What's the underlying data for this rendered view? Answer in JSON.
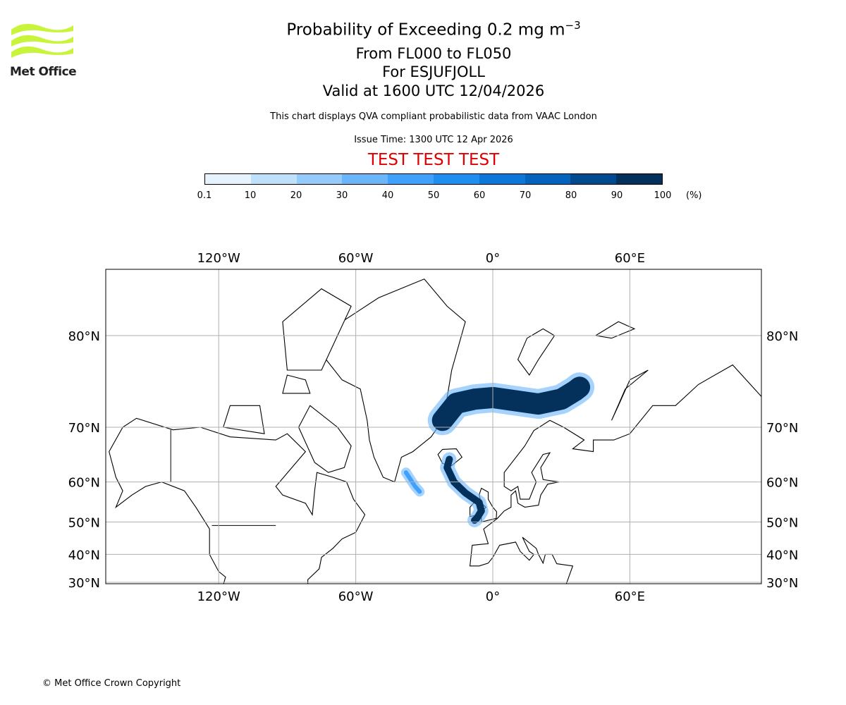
{
  "logo": {
    "text": "Met Office",
    "color": "#c8f53c"
  },
  "header": {
    "title": "Probability of Exceeding 0.2 mg m",
    "title_superscript": "−3",
    "levels": "From FL000 to FL050",
    "volcano": "For ESJUFJOLL",
    "valid": "Valid at 1600 UTC 12/04/2026",
    "description": "This chart displays QVA compliant probabilistic data from VAAC London",
    "issue_time": "Issue Time: 1300 UTC 12 Apr 2026",
    "test_banner": "TEST TEST TEST"
  },
  "chart_data": {
    "type": "heatmap",
    "title": "Probability of Exceeding 0.2 mg m-3",
    "colorbar": {
      "ticks": [
        "0.1",
        "10",
        "20",
        "30",
        "40",
        "50",
        "60",
        "70",
        "80",
        "90",
        "100"
      ],
      "unit": "(%)",
      "colors": [
        "#e6f3fd",
        "#bfe0fb",
        "#95cbfa",
        "#6bb5fb",
        "#3fa1fb",
        "#1e8ef0",
        "#0d77d9",
        "#0363bd",
        "#024a8f",
        "#03315c"
      ]
    },
    "lon_ticks": [
      {
        "value": -120,
        "label": "120°W"
      },
      {
        "value": -60,
        "label": "60°W"
      },
      {
        "value": 0,
        "label": "0°"
      },
      {
        "value": 60,
        "label": "60°E"
      }
    ],
    "lat_ticks": [
      {
        "value": 80,
        "label": "80°N"
      },
      {
        "value": 70,
        "label": "70°N"
      },
      {
        "value": 60,
        "label": "60°N"
      },
      {
        "value": 50,
        "label": "50°N"
      },
      {
        "value": 40,
        "label": "40°N"
      },
      {
        "value": 30,
        "label": "30°N"
      }
    ],
    "extent": {
      "lon": [
        -169.4,
        117.6
      ],
      "lat": [
        29.8,
        86
      ]
    },
    "plumes": [
      {
        "name": "arctic-plume",
        "probability": 95,
        "path": [
          [
            -22,
            71
          ],
          [
            -16,
            73.3
          ],
          [
            -8,
            73.8
          ],
          [
            0,
            74
          ],
          [
            10,
            73.6
          ],
          [
            20,
            73.2
          ],
          [
            30,
            73.8
          ],
          [
            36,
            74.8
          ],
          [
            38,
            75.2
          ]
        ]
      },
      {
        "name": "iceland-uk-plume",
        "probability": 90,
        "path": [
          [
            -19,
            64.6
          ],
          [
            -20,
            63
          ],
          [
            -17,
            60
          ],
          [
            -12,
            57.5
          ],
          [
            -6,
            55.2
          ],
          [
            -5,
            53
          ],
          [
            -7,
            51
          ],
          [
            -8,
            50.5
          ]
        ]
      },
      {
        "name": "west-plume",
        "probability": 45,
        "path": [
          [
            -38,
            62
          ],
          [
            -36,
            60.5
          ],
          [
            -34,
            59
          ],
          [
            -32,
            57.8
          ]
        ]
      }
    ]
  },
  "footer": {
    "copyright": "© Met Office Crown Copyright"
  }
}
